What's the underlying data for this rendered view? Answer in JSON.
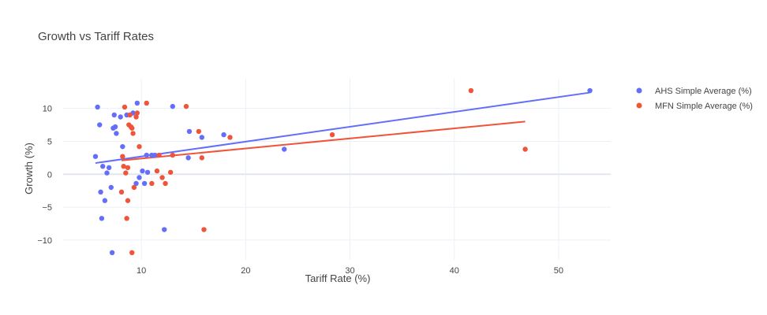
{
  "chart_data": {
    "type": "scatter",
    "title": "Growth vs Tariff Rates",
    "xlabel": "Tariff Rate (%)",
    "ylabel": "Growth (%)",
    "xlim": [
      2.5,
      55
    ],
    "ylim": [
      -13,
      14.5
    ],
    "xticks": [
      10,
      20,
      30,
      40,
      50
    ],
    "yticks": [
      -10,
      -5,
      0,
      5,
      10
    ],
    "grid": true,
    "legend_position": "top-right",
    "series": [
      {
        "name": "AHS Simple Average (%)",
        "color": "#636efa",
        "mode": "markers",
        "x": [
          5.6,
          5.8,
          6.0,
          6.1,
          6.2,
          6.3,
          6.5,
          6.7,
          6.9,
          7.1,
          7.2,
          7.3,
          7.4,
          7.5,
          7.6,
          8.0,
          8.2,
          8.6,
          9.2,
          9.5,
          9.6,
          9.8,
          10.1,
          10.3,
          10.5,
          10.6,
          11.0,
          11.3,
          12.2,
          13.0,
          14.5,
          14.6,
          15.8,
          17.9,
          23.7,
          53.0
        ],
        "y": [
          2.7,
          10.2,
          7.5,
          -2.7,
          -6.7,
          1.2,
          -4.0,
          0.2,
          1.0,
          -2.0,
          -11.9,
          7.0,
          9.0,
          7.2,
          6.2,
          8.7,
          4.2,
          9.0,
          9.3,
          -1.4,
          10.8,
          -0.5,
          0.5,
          -1.4,
          2.9,
          0.3,
          2.9,
          2.9,
          -8.4,
          10.3,
          2.5,
          6.5,
          5.6,
          6.0,
          3.8,
          12.7
        ]
      },
      {
        "name": "MFN Simple Average (%)",
        "color": "#ef553b",
        "mode": "markers",
        "x": [
          8.1,
          8.2,
          8.3,
          8.4,
          8.5,
          8.6,
          8.7,
          8.7,
          8.8,
          8.9,
          9.0,
          9.1,
          9.1,
          9.2,
          9.3,
          9.5,
          9.6,
          9.8,
          10.5,
          11.0,
          11.5,
          11.7,
          12.0,
          12.3,
          12.8,
          13.0,
          14.3,
          15.5,
          15.8,
          16.0,
          18.5,
          28.3,
          41.6,
          46.8
        ],
        "y": [
          -2.7,
          2.7,
          1.2,
          10.2,
          0.2,
          -6.7,
          -4.0,
          1.0,
          7.5,
          9.0,
          7.2,
          -11.9,
          7.0,
          6.2,
          -2.0,
          8.7,
          9.3,
          4.2,
          10.8,
          -1.4,
          0.5,
          2.9,
          -0.5,
          -1.4,
          0.3,
          2.9,
          10.3,
          6.5,
          2.5,
          -8.4,
          5.6,
          6.0,
          12.7,
          3.8
        ]
      },
      {
        "name": "AHS trendline",
        "color": "#636efa",
        "mode": "lines",
        "x": [
          5.6,
          53.0
        ],
        "y": [
          1.7,
          12.4
        ]
      },
      {
        "name": "MFN trendline",
        "color": "#ef553b",
        "mode": "lines",
        "x": [
          8.1,
          46.8
        ],
        "y": [
          2.1,
          8.0
        ]
      }
    ]
  }
}
